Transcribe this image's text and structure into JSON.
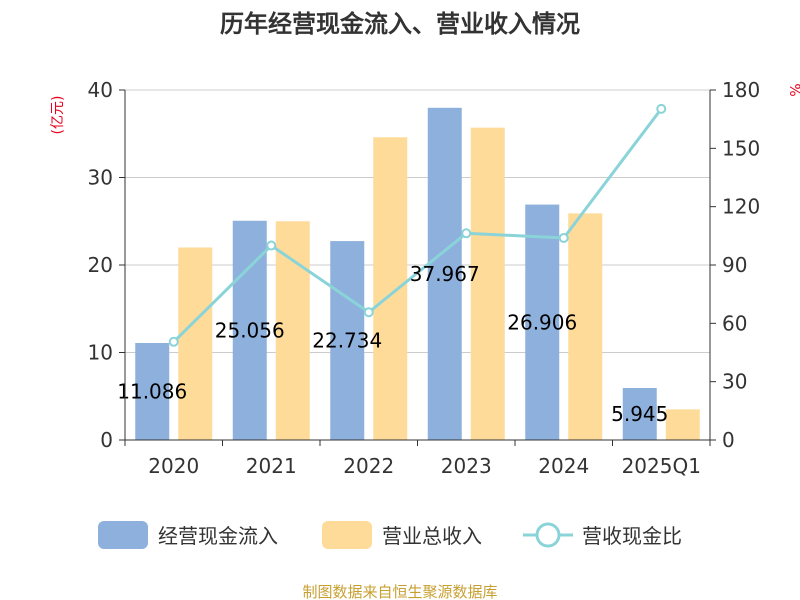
{
  "chart_data": {
    "type": "bar",
    "title": "历年经营现金流入、营业收入情况",
    "categories": [
      "2020",
      "2021",
      "2022",
      "2023",
      "2024",
      "2025Q1"
    ],
    "y_left": {
      "unit": "(亿元)",
      "ylim": [
        0,
        40
      ],
      "ticks": [
        "0",
        "10",
        "20",
        "30",
        "40"
      ]
    },
    "y_right": {
      "unit": "%",
      "ylim": [
        0,
        180
      ],
      "ticks": [
        "0",
        "30",
        "60",
        "90",
        "120",
        "150",
        "180"
      ]
    },
    "series": [
      {
        "name": "经营现金流入",
        "type": "bar",
        "axis": "left",
        "color": "#8eb0dc",
        "values": [
          11.086,
          25.056,
          22.734,
          37.967,
          26.906,
          5.945
        ],
        "labels": [
          "11.086",
          "25.056",
          "22.734",
          "37.967",
          "26.906",
          "5.945"
        ]
      },
      {
        "name": "营业总收入",
        "type": "bar",
        "axis": "left",
        "color": "#fedb99",
        "values": [
          22.0,
          25.0,
          34.6,
          35.7,
          25.9,
          3.5
        ]
      },
      {
        "name": "营收现金比",
        "type": "line",
        "axis": "right",
        "color": "#8ad4d9",
        "values": [
          50.5,
          100.0,
          65.7,
          106.3,
          103.9,
          170.3
        ]
      }
    ],
    "grid": true,
    "legend_position": "bottom"
  },
  "source_note": "制图数据来自恒生聚源数据库",
  "colors": {
    "title": "#333333",
    "unit_label": "#e8001c",
    "source_note": "#c8a032",
    "grid": "#cccccc",
    "axis": "#333333"
  }
}
